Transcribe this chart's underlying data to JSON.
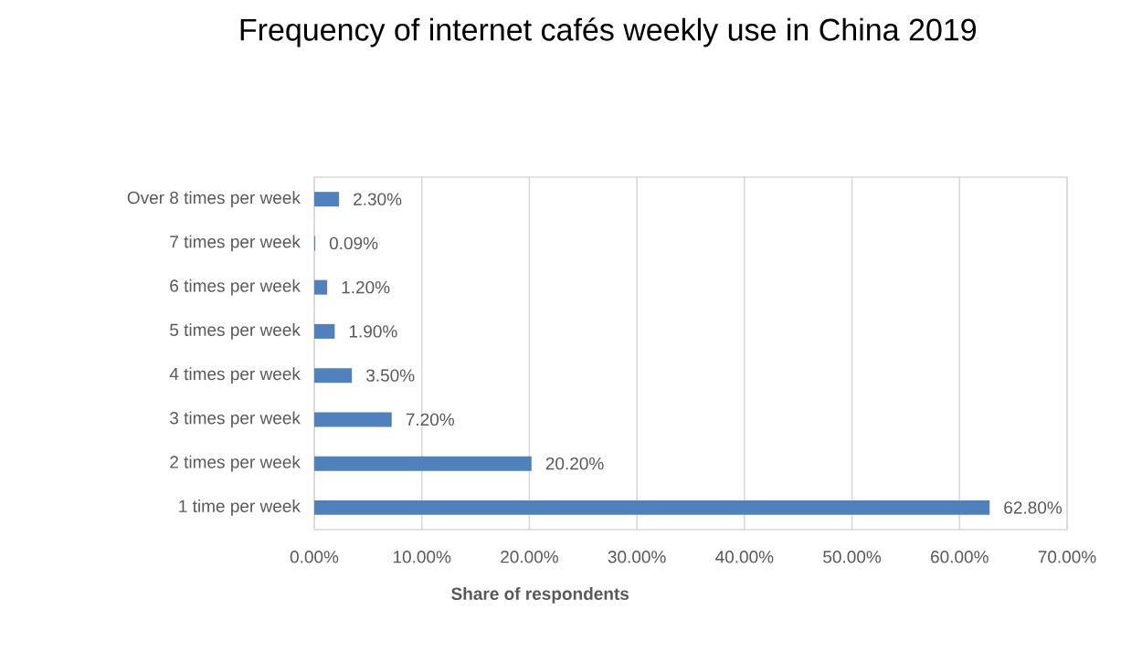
{
  "chart_data": {
    "type": "bar",
    "orientation": "horizontal",
    "title": "Frequency of internet cafés weekly use in China 2019",
    "xlabel": "Share of respondents",
    "categories": [
      "Over 8 times per week",
      "7 times per week",
      "6 times per week",
      "5 times per week",
      "4 times per week",
      "3 times per week",
      "2 times per week",
      "1 time per week"
    ],
    "values": [
      2.3,
      0.09,
      1.2,
      1.9,
      3.5,
      7.2,
      20.2,
      62.8
    ],
    "value_labels": [
      "2.30%",
      "0.09%",
      "1.20%",
      "1.90%",
      "3.50%",
      "7.20%",
      "20.20%",
      "62.80%"
    ],
    "color": "#4f81bd",
    "xlim": [
      0,
      70
    ],
    "xticks": [
      {
        "value": 0,
        "label": "0.00%"
      },
      {
        "value": 10,
        "label": "10.00%"
      },
      {
        "value": 20,
        "label": "20.00%"
      },
      {
        "value": 30,
        "label": "30.00%"
      },
      {
        "value": 40,
        "label": "40.00%"
      },
      {
        "value": 50,
        "label": "50.00%"
      },
      {
        "value": 60,
        "label": "60.00%"
      },
      {
        "value": 70,
        "label": "70.00%"
      }
    ],
    "grid": "x"
  }
}
